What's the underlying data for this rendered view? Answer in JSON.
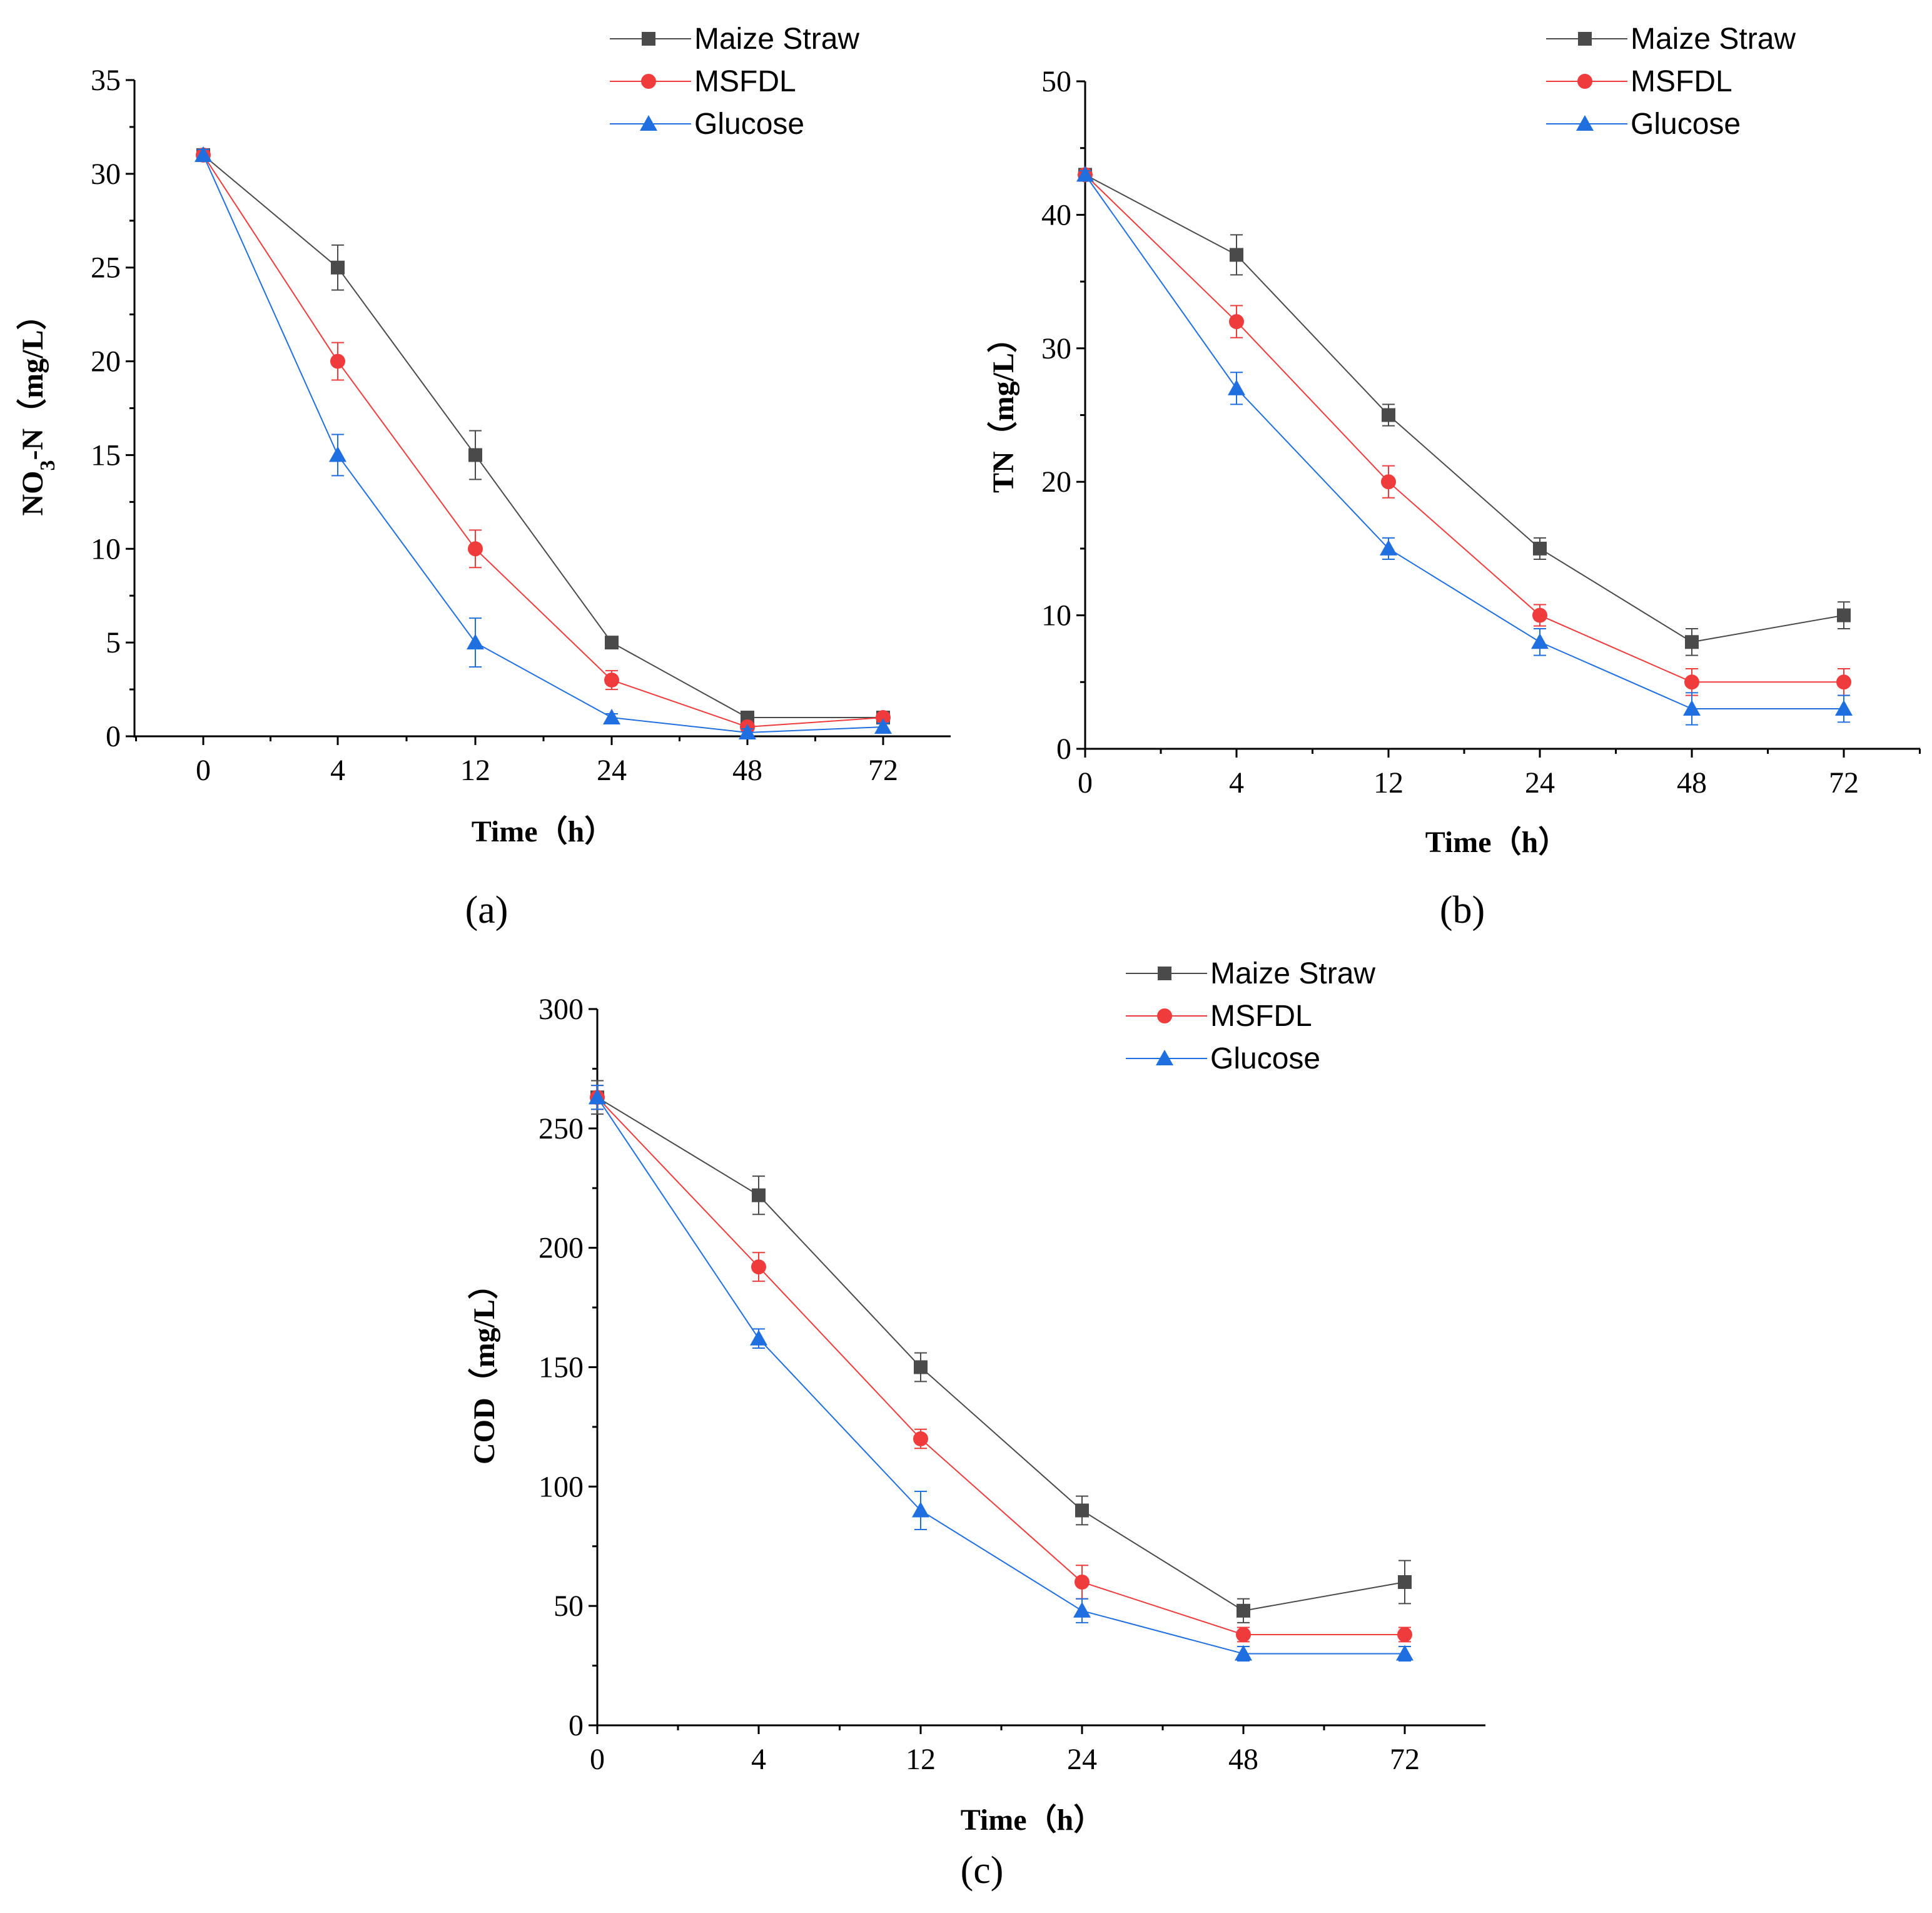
{
  "colors": {
    "maize": "#4a4a4a",
    "msfdl": "#ef3b3b",
    "glucose": "#1f6fe0"
  },
  "chart_data": [
    {
      "id": "a",
      "type": "line",
      "panel_label": "(a)",
      "x_categories": [
        "0",
        "4",
        "12",
        "24",
        "48",
        "72"
      ],
      "xlabel": "Time（h）",
      "ylabel_main": "NO",
      "ylabel_sub": "3",
      "ylabel_rest": "-N（mg/L）",
      "ylim": [
        0,
        35
      ],
      "yticks": [
        "0",
        "5",
        "10",
        "15",
        "20",
        "25",
        "30",
        "35"
      ],
      "series": [
        {
          "name": "Maize Straw",
          "marker": "square",
          "color_key": "maize",
          "values": [
            31,
            25,
            15,
            5,
            1,
            1
          ],
          "errors": [
            0.3,
            1.2,
            1.3,
            0.2,
            0.2,
            0.2
          ]
        },
        {
          "name": "MSFDL",
          "marker": "circle",
          "color_key": "msfdl",
          "values": [
            31,
            20,
            10,
            3,
            0.5,
            1
          ],
          "errors": [
            0.3,
            1.0,
            1.0,
            0.5,
            0.2,
            0.2
          ]
        },
        {
          "name": "Glucose",
          "marker": "triangle",
          "color_key": "glucose",
          "values": [
            31,
            15,
            5,
            1,
            0.2,
            0.5
          ],
          "errors": [
            0.3,
            1.1,
            1.3,
            0.2,
            0.2,
            0.2
          ]
        }
      ]
    },
    {
      "id": "b",
      "type": "line",
      "panel_label": "(b)",
      "x_categories": [
        "0",
        "4",
        "12",
        "24",
        "48",
        "72"
      ],
      "xlabel": "Time（h）",
      "ylabel": "TN（mg/L）",
      "ylim": [
        0,
        50
      ],
      "yticks": [
        "0",
        "10",
        "20",
        "30",
        "40",
        "50"
      ],
      "series": [
        {
          "name": "Maize Straw",
          "marker": "square",
          "color_key": "maize",
          "values": [
            43,
            37,
            25,
            15,
            8,
            10
          ],
          "errors": [
            0.3,
            1.5,
            0.8,
            0.8,
            1.0,
            1.0
          ]
        },
        {
          "name": "MSFDL",
          "marker": "circle",
          "color_key": "msfdl",
          "values": [
            43,
            32,
            20,
            10,
            5,
            5
          ],
          "errors": [
            0.3,
            1.2,
            1.2,
            0.8,
            1.0,
            1.0
          ]
        },
        {
          "name": "Glucose",
          "marker": "triangle",
          "color_key": "glucose",
          "values": [
            43,
            27,
            15,
            8,
            3,
            3
          ],
          "errors": [
            0.3,
            1.2,
            0.8,
            1.0,
            1.2,
            1.0
          ]
        }
      ]
    },
    {
      "id": "c",
      "type": "line",
      "panel_label": "(c)",
      "x_categories": [
        "0",
        "4",
        "12",
        "24",
        "48",
        "72"
      ],
      "xlabel": "Time（h）",
      "ylabel": "COD（mg/L）",
      "ylim": [
        0,
        300
      ],
      "yticks": [
        "0",
        "50",
        "100",
        "150",
        "200",
        "250",
        "300"
      ],
      "series": [
        {
          "name": "Maize Straw",
          "marker": "square",
          "color_key": "maize",
          "values": [
            263,
            222,
            150,
            90,
            48,
            60
          ],
          "errors": [
            7,
            8,
            6,
            6,
            5,
            9
          ]
        },
        {
          "name": "MSFDL",
          "marker": "circle",
          "color_key": "msfdl",
          "values": [
            263,
            192,
            120,
            60,
            38,
            38
          ],
          "errors": [
            5,
            6,
            4,
            7,
            3,
            3
          ]
        },
        {
          "name": "Glucose",
          "marker": "triangle",
          "color_key": "glucose",
          "values": [
            263,
            162,
            90,
            48,
            30,
            30
          ],
          "errors": [
            5,
            4,
            8,
            5,
            3,
            3
          ]
        }
      ]
    }
  ]
}
